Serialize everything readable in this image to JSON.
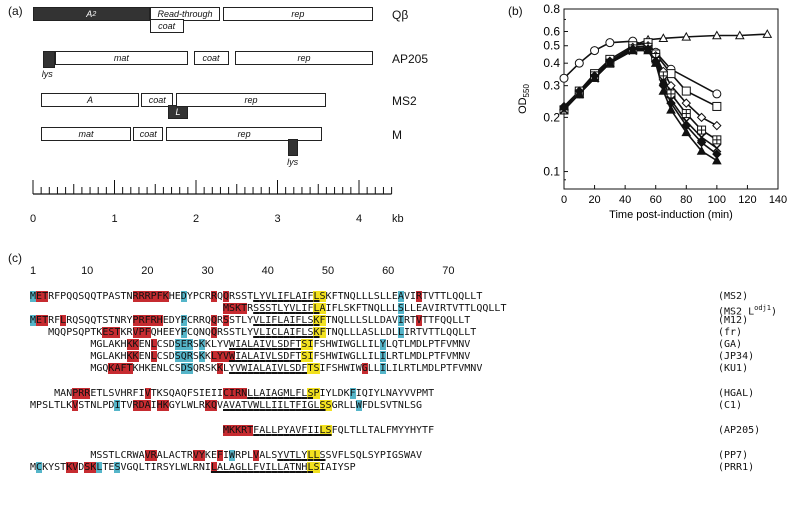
{
  "panels": {
    "a": "(a)",
    "b": "(b)",
    "c": "(c)"
  },
  "genome_map": {
    "phages": [
      {
        "name": "Qβ",
        "genes": [
          {
            "label": "A",
            "sub": "2",
            "start": 0,
            "end": 1.43,
            "dark": true
          },
          {
            "label": "Read-through",
            "start": 1.43,
            "end": 2.3
          },
          {
            "label": "coat",
            "start": 1.43,
            "end": 1.85,
            "lower": true
          },
          {
            "label": "rep",
            "start": 2.33,
            "end": 4.17
          }
        ]
      },
      {
        "name": "AP205",
        "genes": [
          {
            "label": "lys",
            "start": 0.12,
            "end": 0.27,
            "dark": true,
            "below_label": true
          },
          {
            "label": "mat",
            "start": 0.27,
            "end": 1.9
          },
          {
            "label": "coat",
            "start": 1.97,
            "end": 2.4
          },
          {
            "label": "rep",
            "start": 2.48,
            "end": 4.17
          }
        ]
      },
      {
        "name": "MS2",
        "genes": [
          {
            "label": "A",
            "start": 0.1,
            "end": 1.3
          },
          {
            "label": "coat",
            "start": 1.33,
            "end": 1.72
          },
          {
            "label": "L",
            "start": 1.66,
            "end": 1.9,
            "dark": true,
            "lower": true
          },
          {
            "label": "rep",
            "start": 1.75,
            "end": 3.6
          }
        ]
      },
      {
        "name": "M",
        "genes": [
          {
            "label": "mat",
            "start": 0.1,
            "end": 1.2
          },
          {
            "label": "coat",
            "start": 1.23,
            "end": 1.6
          },
          {
            "label": "rep",
            "start": 1.63,
            "end": 3.55
          },
          {
            "label": "lys",
            "start": 3.13,
            "end": 3.25,
            "dark": true,
            "lower": true,
            "below_label": true
          }
        ]
      }
    ],
    "axis": {
      "ticks": [
        "0",
        "1",
        "2",
        "3",
        "4"
      ],
      "unit": "kb"
    }
  },
  "chart_data": {
    "type": "line",
    "xlabel": "Time post-induction (min)",
    "ylabel": "OD550",
    "xlim": [
      0,
      140
    ],
    "ylim": [
      0.08,
      0.8
    ],
    "yscale": "log",
    "xticks": [
      "0",
      "20",
      "40",
      "60",
      "80",
      "100",
      "120",
      "140"
    ],
    "yticks": [
      {
        "v": 0.8,
        "l": "0.8"
      },
      {
        "v": 0.6,
        "l": "0.6"
      },
      {
        "v": 0.5,
        "l": "0.5"
      },
      {
        "v": 0.4,
        "l": "0.4"
      },
      {
        "v": 0.3,
        "l": "0.3"
      },
      {
        "v": 0.2,
        "l": "0.2"
      },
      {
        "v": 0.1,
        "l": "0.1"
      }
    ],
    "series": [
      {
        "marker": "triangle-open",
        "x": [
          0,
          10,
          20,
          30,
          45,
          55,
          65,
          80,
          100,
          115,
          133
        ],
        "y": [
          0.23,
          0.27,
          0.33,
          0.4,
          0.5,
          0.54,
          0.55,
          0.56,
          0.57,
          0.57,
          0.58
        ]
      },
      {
        "marker": "circle-open",
        "x": [
          0,
          10,
          20,
          30,
          45,
          55,
          60,
          70,
          100
        ],
        "y": [
          0.33,
          0.4,
          0.47,
          0.52,
          0.53,
          0.5,
          0.46,
          0.37,
          0.27
        ]
      },
      {
        "marker": "square-open",
        "x": [
          0,
          10,
          20,
          30,
          45,
          55,
          60,
          70,
          80,
          100
        ],
        "y": [
          0.22,
          0.28,
          0.35,
          0.42,
          0.5,
          0.52,
          0.45,
          0.35,
          0.28,
          0.23
        ]
      },
      {
        "marker": "diamond-open",
        "x": [
          0,
          10,
          20,
          30,
          45,
          55,
          60,
          65,
          70,
          80,
          90,
          100
        ],
        "y": [
          0.22,
          0.27,
          0.34,
          0.41,
          0.49,
          0.5,
          0.44,
          0.36,
          0.3,
          0.24,
          0.2,
          0.18
        ]
      },
      {
        "marker": "square-cross",
        "x": [
          0,
          10,
          20,
          30,
          45,
          55,
          60,
          65,
          70,
          80,
          90,
          100
        ],
        "y": [
          0.22,
          0.27,
          0.34,
          0.4,
          0.48,
          0.49,
          0.43,
          0.34,
          0.27,
          0.21,
          0.17,
          0.15
        ]
      },
      {
        "marker": "cross",
        "x": [
          0,
          10,
          20,
          30,
          45,
          55,
          60,
          65,
          70,
          80,
          90,
          100
        ],
        "y": [
          0.22,
          0.27,
          0.33,
          0.4,
          0.47,
          0.48,
          0.42,
          0.32,
          0.25,
          0.19,
          0.155,
          0.135
        ]
      },
      {
        "marker": "diamond-filled",
        "x": [
          0,
          10,
          20,
          30,
          45,
          55,
          60,
          65,
          70,
          80,
          90,
          100
        ],
        "y": [
          0.23,
          0.28,
          0.34,
          0.41,
          0.48,
          0.48,
          0.41,
          0.3,
          0.24,
          0.18,
          0.145,
          0.125
        ]
      },
      {
        "marker": "triangle-filled",
        "x": [
          0,
          10,
          20,
          30,
          45,
          55,
          60,
          65,
          70,
          80,
          90,
          100
        ],
        "y": [
          0.23,
          0.27,
          0.33,
          0.4,
          0.47,
          0.47,
          0.4,
          0.28,
          0.22,
          0.165,
          0.13,
          0.115
        ]
      }
    ]
  },
  "alignment": {
    "positions": [
      "1",
      "10",
      "20",
      "30",
      "40",
      "50",
      "60",
      "70"
    ],
    "rows": [
      {
        "name": "(MS2)",
        "seq": "METRFPQQSQQTPASTNRRRPFKHEDYPCRRQQRSSTLYVLIFLAIFLSKFTNQLLLSLLEAVIRTVTTLQQLLT",
        "r": [
          2,
          3,
          18,
          19,
          20,
          21,
          22,
          23,
          31,
          33,
          65
        ],
        "b": [
          1,
          26,
          62
        ],
        "y": [
          48,
          49
        ],
        "u": [
          38,
          48
        ]
      },
      {
        "name": "(MS2 L",
        "sup": "odj1",
        "name2": ")",
        "seq": "                                MSKTRSSSTLYVLIFLAIFLSKFTNQLLLSLLEAVIRTVTTLQQLLT",
        "r": [
          33,
          34,
          35,
          36
        ],
        "b": [
          62
        ],
        "y": [
          48,
          49
        ],
        "u": [
          38,
          48
        ]
      },
      {
        "name": "(M12)",
        "seq": "METRFLRQSQQTSTNRYPRFRHEDYPCRRQQRSSTLYVLIFLAIFLSKFTNQLLLSLLDAVIRTVTTFQQLLT",
        "r": [
          2,
          3,
          6,
          18,
          19,
          20,
          21,
          22,
          31,
          33,
          65
        ],
        "b": [
          1,
          26,
          62
        ],
        "y": [
          48,
          49
        ],
        "u": [
          38,
          48
        ]
      },
      {
        "name": "(fr)",
        "seq": "   MQQPSQPTKESTKRVPFQHEEYPCQNQQRSSTLYVLICLAIFLSKFTNQLLLASLLDLLIRTVTTLQQLLT",
        "r": [
          13,
          14,
          15,
          18,
          19,
          20,
          31
        ],
        "b": [
          26,
          62
        ],
        "y": [
          48,
          49
        ],
        "u": [
          38,
          48
        ]
      },
      {
        "name": "(GA)",
        "seq": "          MGLAKHKKENLCSDSERSKKLYVWIALAIVLSDFTSIFSHWIWGLLILYLQTLMDLPTFVMNV",
        "r": [
          17,
          18,
          21
        ],
        "b": [
          25,
          26,
          27,
          29,
          59
        ],
        "y": [
          46,
          47
        ],
        "u": [
          34,
          45
        ]
      },
      {
        "name": "(JP34)",
        "seq": "          MGLAKHKKENLCSDSQRSKKLYVWIALAIVLSDFTSIFSHWIWGLLILILRTLMDLPTFVMNV",
        "r": [
          17,
          18,
          21,
          31,
          32,
          33,
          34
        ],
        "b": [
          25,
          26,
          27,
          29,
          59
        ],
        "y": [
          46,
          47
        ],
        "u": [
          34,
          45
        ]
      },
      {
        "name": "(KU1)",
        "seq": "          MGQKAFTKHKENLCSDSQRSKKLYVWIALAIVLSDFTSIFSHWIWGLLILILRTLMDLPTFVMNV",
        "r": [
          14,
          15,
          16,
          17,
          32,
          56
        ],
        "b": [
          26,
          27,
          59
        ],
        "y": [
          47,
          48
        ],
        "u": [
          34,
          46
        ]
      },
      {
        "name": "",
        "seq": ""
      },
      {
        "name": "(HGAL)",
        "seq": "    MANPRRETLSVHRFIVTKSQAQFSIEIICIRNLLAIAGMLFLSPIYLDKFIQIYLNAYVVPMT",
        "r": [
          8,
          9,
          10,
          20,
          33,
          34,
          35,
          36
        ],
        "b": [
          54
        ],
        "y": [
          47,
          48
        ],
        "u": [
          37,
          47
        ]
      },
      {
        "name": "(C1)",
        "seq": "MPSLTLKVSTNLPDITVRDAIHKGYLWLRKQVAVATVWLLIILTFIGLSSGRLLWFDLSVTNLSG",
        "r": [
          8,
          18,
          19,
          20,
          22,
          23,
          30,
          31
        ],
        "b": [
          15,
          55
        ],
        "y": [
          49,
          50
        ],
        "u": [
          33,
          49
        ]
      },
      {
        "name": "",
        "seq": ""
      },
      {
        "name": "(AP205)",
        "seq": "                                MKKRTFALLPYAVFIILSFQLTLLTALFMYYHYTF",
        "r": [
          33,
          34,
          35,
          36,
          37
        ],
        "b": [],
        "y": [
          49,
          50
        ],
        "u": [
          38,
          50
        ]
      },
      {
        "name": "",
        "seq": ""
      },
      {
        "name": "(PP7)",
        "seq": "          MSSTLCRWAVRALACTRVYKEFIWRPLVALSYVTLYLLSSVFLSQLSYPIGSWAV",
        "r": [
          20,
          21,
          28,
          29,
          32,
          38
        ],
        "b": [
          34
        ],
        "y": [
          47,
          48
        ],
        "u": [
          42,
          49
        ]
      },
      {
        "name": "(PRR1)",
        "seq": "MCKYSTKVDSKLTESVGQLTIRSYLWLRNILALAGLLFVILLATNHLSIAIYSP",
        "r": [
          7,
          8,
          10,
          11,
          31
        ],
        "b": [
          2,
          12,
          15
        ],
        "y": [
          47,
          48
        ],
        "u": [
          31,
          47
        ]
      }
    ]
  }
}
